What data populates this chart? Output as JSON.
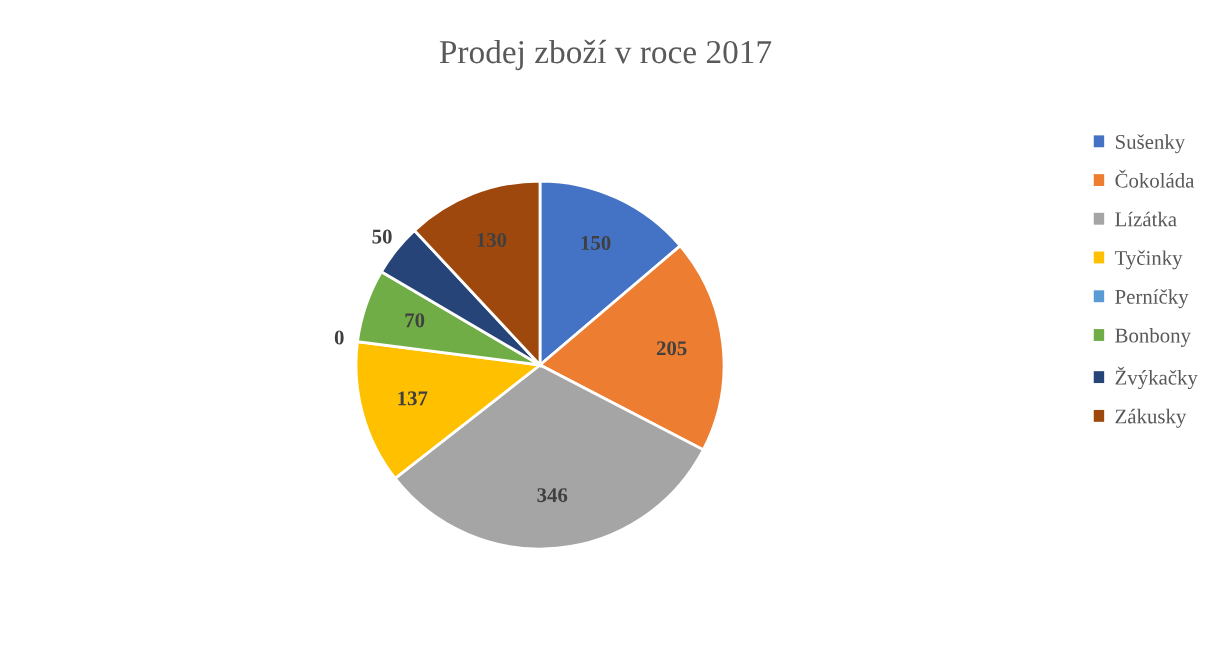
{
  "chart_data": {
    "type": "pie",
    "title": "Prodej zboží v roce 2017",
    "categories": [
      "Sušenky",
      "Čokoláda",
      "Lízátka",
      "Tyčinky",
      "Perníčky",
      "Bonbony",
      "Žvýkačky",
      "Zákusky"
    ],
    "values": [
      150,
      205,
      346,
      137,
      0,
      70,
      50,
      130
    ],
    "colors": [
      "#4472c4",
      "#ed7d31",
      "#a5a5a5",
      "#ffc000",
      "#5b9bd5",
      "#70ad47",
      "#264478",
      "#9e480e"
    ],
    "value_labels": [
      "150",
      "205",
      "346",
      "137",
      "0",
      "70",
      "50",
      "130"
    ],
    "legend": "right"
  }
}
